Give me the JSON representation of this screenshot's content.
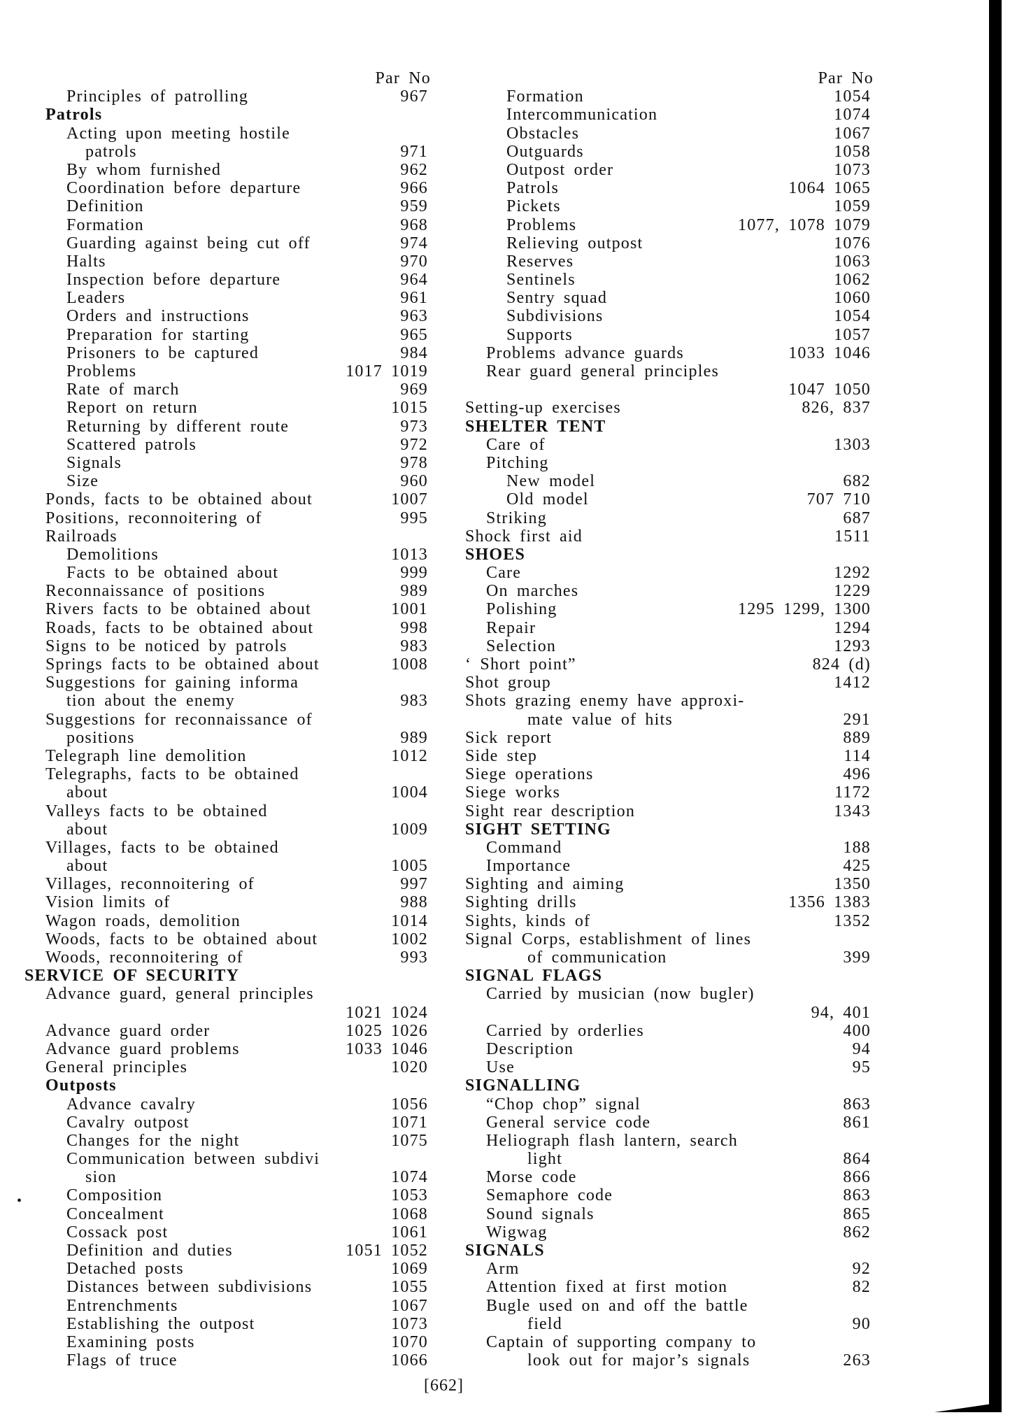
{
  "page_number": "[662]",
  "column_header": "Par  No",
  "columns": [
    {
      "lines": [
        {
          "level": 2,
          "text": "Principles of patrolling",
          "num": "967"
        },
        {
          "level": 1,
          "text": "Patrols",
          "num": "",
          "heading": true
        },
        {
          "level": 2,
          "text": "Acting   upon   meeting   hostile",
          "num": ""
        },
        {
          "level": 3,
          "text": "patrols",
          "num": "971"
        },
        {
          "level": 2,
          "text": "By whom furnished",
          "num": "962"
        },
        {
          "level": 2,
          "text": "Coordination before departure",
          "num": "966"
        },
        {
          "level": 2,
          "text": "Definition",
          "num": "959"
        },
        {
          "level": 2,
          "text": "Formation",
          "num": "968"
        },
        {
          "level": 2,
          "text": "Guarding against being cut off",
          "num": "974"
        },
        {
          "level": 2,
          "text": "Halts",
          "num": "970"
        },
        {
          "level": 2,
          "text": "Inspection before departure",
          "num": "964"
        },
        {
          "level": 2,
          "text": "Leaders",
          "num": "961"
        },
        {
          "level": 2,
          "text": "Orders and instructions",
          "num": "963"
        },
        {
          "level": 2,
          "text": "Preparation for starting",
          "num": "965"
        },
        {
          "level": 2,
          "text": "Prisoners to be captured",
          "num": "984"
        },
        {
          "level": 2,
          "text": "Problems",
          "num": "1017 1019"
        },
        {
          "level": 2,
          "text": "Rate of march",
          "num": "969"
        },
        {
          "level": 2,
          "text": "Report on return",
          "num": "1015"
        },
        {
          "level": 2,
          "text": "Returning by different route",
          "num": "973"
        },
        {
          "level": 2,
          "text": "Scattered patrols",
          "num": "972"
        },
        {
          "level": 2,
          "text": "Signals",
          "num": "978"
        },
        {
          "level": 2,
          "text": "Size",
          "num": "960"
        },
        {
          "level": 1,
          "text": "Ponds, facts to be obtained about",
          "num": "1007"
        },
        {
          "level": 1,
          "text": "Positions, reconnoitering of",
          "num": "995"
        },
        {
          "level": 1,
          "text": "Railroads",
          "num": ""
        },
        {
          "level": 2,
          "text": "Demolitions",
          "num": "1013"
        },
        {
          "level": 2,
          "text": "Facts to be obtained about",
          "num": "999"
        },
        {
          "level": 1,
          "text": "Reconnaissance of positions",
          "num": "989"
        },
        {
          "level": 1,
          "text": "Rivers facts to be obtained about",
          "num": "1001"
        },
        {
          "level": 1,
          "text": "Roads, facts to be obtained about",
          "num": "998"
        },
        {
          "level": 1,
          "text": "Signs to be noticed by patrols",
          "num": "983"
        },
        {
          "level": 1,
          "text": "Springs facts to be obtained about",
          "num": "1008"
        },
        {
          "level": 1,
          "text": "Suggestions  for  gaining  informa",
          "num": ""
        },
        {
          "level": 2,
          "text": "tion about the enemy",
          "num": "983"
        },
        {
          "level": 1,
          "text": "Suggestions for reconnaissance of",
          "num": ""
        },
        {
          "level": 2,
          "text": "positions",
          "num": "989"
        },
        {
          "level": 1,
          "text": "Telegraph line demolition",
          "num": "1012"
        },
        {
          "level": 1,
          "text": "Telegraphs,  facts  to  be  obtained",
          "num": ""
        },
        {
          "level": 2,
          "text": "about",
          "num": "1004"
        },
        {
          "level": 1,
          "text": "Valleys    facts    to    be    obtained",
          "num": ""
        },
        {
          "level": 2,
          "text": "about",
          "num": "1009"
        },
        {
          "level": 1,
          "text": "Villages,   facts   to   be   obtained",
          "num": ""
        },
        {
          "level": 2,
          "text": "about",
          "num": "1005"
        },
        {
          "level": 1,
          "text": "Villages, reconnoitering of",
          "num": "997"
        },
        {
          "level": 1,
          "text": "Vision limits of",
          "num": "988"
        },
        {
          "level": 1,
          "text": "Wagon roads, demolition",
          "num": "1014"
        },
        {
          "level": 1,
          "text": "Woods, facts to be obtained about",
          "num": "1002"
        },
        {
          "level": 1,
          "text": "Woods, reconnoitering of",
          "num": "993"
        },
        {
          "level": 0,
          "text": "SERVICE OF SECURITY",
          "num": "",
          "heading": true
        },
        {
          "level": 1,
          "text": "Advance guard, general principles",
          "num": ""
        },
        {
          "level": 1,
          "text": "",
          "num": "1021 1024"
        },
        {
          "level": 1,
          "text": "Advance guard order",
          "num": "1025 1026"
        },
        {
          "level": 1,
          "text": "Advance guard problems",
          "num": "1033 1046"
        },
        {
          "level": 1,
          "text": "General principles",
          "num": "1020"
        },
        {
          "level": 1,
          "text": "Outposts",
          "num": "",
          "heading": true
        },
        {
          "level": 2,
          "text": "Advance cavalry",
          "num": "1056"
        },
        {
          "level": 2,
          "text": "Cavalry outpost",
          "num": "1071"
        },
        {
          "level": 2,
          "text": "Changes for the night",
          "num": "1075"
        },
        {
          "level": 2,
          "text": "Communication between subdivi",
          "num": ""
        },
        {
          "level": 3,
          "text": "sion",
          "num": "1074"
        },
        {
          "level": 2,
          "text": "Composition",
          "num": "1053"
        },
        {
          "level": 2,
          "text": "Concealment",
          "num": "1068"
        },
        {
          "level": 2,
          "text": "Cossack post",
          "num": "1061"
        },
        {
          "level": 2,
          "text": "Definition and duties",
          "num": "1051 1052"
        },
        {
          "level": 2,
          "text": "Detached posts",
          "num": "1069"
        },
        {
          "level": 2,
          "text": "Distances between subdivisions",
          "num": "1055"
        },
        {
          "level": 2,
          "text": "Entrenchments",
          "num": "1067"
        },
        {
          "level": 2,
          "text": "Establishing the outpost",
          "num": "1073"
        },
        {
          "level": 2,
          "text": "Examining posts",
          "num": "1070"
        },
        {
          "level": 2,
          "text": "Flags of truce",
          "num": "1066"
        }
      ]
    },
    {
      "lines": [
        {
          "level": 2,
          "text": "Formation",
          "num": "1054"
        },
        {
          "level": 2,
          "text": "Intercommunication",
          "num": "1074"
        },
        {
          "level": 2,
          "text": "Obstacles",
          "num": "1067"
        },
        {
          "level": 2,
          "text": "Outguards",
          "num": "1058"
        },
        {
          "level": 2,
          "text": "Outpost order",
          "num": "1073"
        },
        {
          "level": 2,
          "text": "Patrols",
          "num": "1064 1065"
        },
        {
          "level": 2,
          "text": "Pickets",
          "num": "1059"
        },
        {
          "level": 2,
          "text": "Problems",
          "num": "1077, 1078  1079"
        },
        {
          "level": 2,
          "text": "Relieving outpost",
          "num": "1076"
        },
        {
          "level": 2,
          "text": "Reserves",
          "num": "1063"
        },
        {
          "level": 2,
          "text": "Sentinels",
          "num": "1062"
        },
        {
          "level": 2,
          "text": "Sentry squad",
          "num": "1060"
        },
        {
          "level": 2,
          "text": "Subdivisions",
          "num": "1054"
        },
        {
          "level": 2,
          "text": "Supports",
          "num": "1057"
        },
        {
          "level": 1,
          "text": "Problems advance guards",
          "num": "1033 1046"
        },
        {
          "level": 1,
          "text": "Rear   guard   general   principles",
          "num": ""
        },
        {
          "level": 1,
          "text": "",
          "num": "1047 1050"
        },
        {
          "level": 0,
          "text": "Setting-up exercises",
          "num": "826, 837"
        },
        {
          "level": 0,
          "text": "SHELTER TENT",
          "num": "",
          "heading": true
        },
        {
          "level": 1,
          "text": "Care of",
          "num": "1303"
        },
        {
          "level": 1,
          "text": "Pitching",
          "num": ""
        },
        {
          "level": 2,
          "text": "New model",
          "num": "682"
        },
        {
          "level": 2,
          "text": "Old model",
          "num": "707 710"
        },
        {
          "level": 1,
          "text": "Striking",
          "num": "687"
        },
        {
          "level": 0,
          "text": "Shock first aid",
          "num": "1511"
        },
        {
          "level": 0,
          "text": "SHOES",
          "num": "",
          "heading": true
        },
        {
          "level": 1,
          "text": "Care",
          "num": "1292"
        },
        {
          "level": 1,
          "text": "On marches",
          "num": "1229"
        },
        {
          "level": 1,
          "text": "Polishing",
          "num": "1295  1299, 1300"
        },
        {
          "level": 1,
          "text": "Repair",
          "num": "1294"
        },
        {
          "level": 1,
          "text": "Selection",
          "num": "1293"
        },
        {
          "level": 0,
          "text": "‘ Short point”",
          "num": "824 (d)"
        },
        {
          "level": 0,
          "text": "Shot group",
          "num": "1412"
        },
        {
          "level": 0,
          "text": "Shots grazing enemy have approxi-",
          "num": ""
        },
        {
          "level": 3,
          "text": "mate value of hits",
          "num": "291"
        },
        {
          "level": 0,
          "text": "Sick report",
          "num": "889"
        },
        {
          "level": 0,
          "text": "Side step",
          "num": "114"
        },
        {
          "level": 0,
          "text": "Siege operations",
          "num": "496"
        },
        {
          "level": 0,
          "text": "Siege works",
          "num": "1172"
        },
        {
          "level": 0,
          "text": "Sight rear description",
          "num": "1343"
        },
        {
          "level": 0,
          "text": "SIGHT SETTING",
          "num": "",
          "heading": true
        },
        {
          "level": 1,
          "text": "Command",
          "num": "188"
        },
        {
          "level": 1,
          "text": "Importance",
          "num": "425"
        },
        {
          "level": 0,
          "text": "Sighting and aiming",
          "num": "1350"
        },
        {
          "level": 0,
          "text": "Sighting drills",
          "num": "1356  1383"
        },
        {
          "level": 0,
          "text": "Sights, kinds of",
          "num": "1352"
        },
        {
          "level": 0,
          "text": "Signal Corps, establishment of lines",
          "num": ""
        },
        {
          "level": 3,
          "text": "of communication",
          "num": "399"
        },
        {
          "level": 0,
          "text": "SIGNAL FLAGS",
          "num": "",
          "heading": true
        },
        {
          "level": 1,
          "text": "Carried by musician (now bugler)",
          "num": ""
        },
        {
          "level": 1,
          "text": "",
          "num": "94,   401"
        },
        {
          "level": 1,
          "text": "Carried by orderlies",
          "num": "400"
        },
        {
          "level": 1,
          "text": "Description",
          "num": "94"
        },
        {
          "level": 1,
          "text": "Use",
          "num": "95"
        },
        {
          "level": 0,
          "text": "SIGNALLING",
          "num": "",
          "heading": true
        },
        {
          "level": 1,
          "text": "“Chop chop” signal",
          "num": "863"
        },
        {
          "level": 1,
          "text": "General service code",
          "num": "861"
        },
        {
          "level": 1,
          "text": "Heliograph flash lantern, search",
          "num": ""
        },
        {
          "level": 3,
          "text": "light",
          "num": "864"
        },
        {
          "level": 1,
          "text": "Morse code",
          "num": "866"
        },
        {
          "level": 1,
          "text": "Semaphore code",
          "num": "863"
        },
        {
          "level": 1,
          "text": "Sound signals",
          "num": "865"
        },
        {
          "level": 1,
          "text": "Wigwag",
          "num": "862"
        },
        {
          "level": 0,
          "text": "SIGNALS",
          "num": "",
          "heading": true
        },
        {
          "level": 1,
          "text": "Arm",
          "num": "92"
        },
        {
          "level": 1,
          "text": "Attention fixed at first motion",
          "num": "82"
        },
        {
          "level": 1,
          "text": "Bugle used on and off the battle",
          "num": ""
        },
        {
          "level": 3,
          "text": "field",
          "num": "90"
        },
        {
          "level": 1,
          "text": "Captain of supporting company to",
          "num": ""
        },
        {
          "level": 3,
          "text": "look out for major’s signals",
          "num": "263"
        }
      ]
    }
  ]
}
